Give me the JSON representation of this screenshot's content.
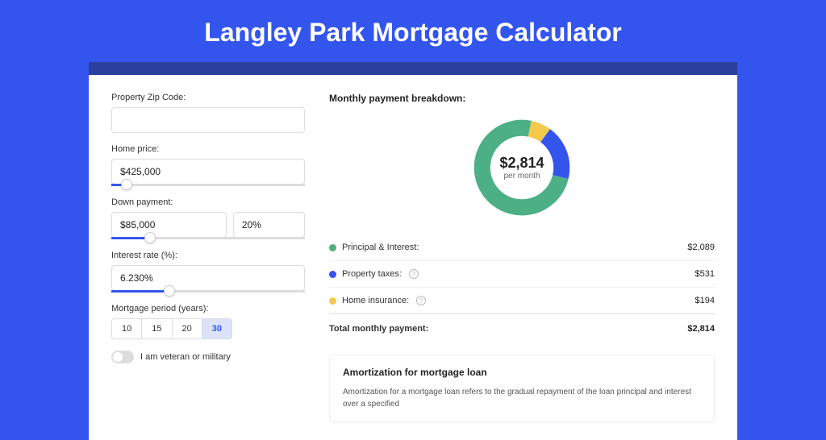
{
  "page": {
    "title": "Langley Park Mortgage Calculator",
    "bg_color": "#3355ee",
    "inner_bg": "#2a3f9e",
    "card_bg": "#ffffff"
  },
  "form": {
    "zip_label": "Property Zip Code:",
    "zip_value": "",
    "home_price_label": "Home price:",
    "home_price_value": "$425,000",
    "home_price_slider_pct": 8,
    "down_payment_label": "Down payment:",
    "down_payment_value": "$85,000",
    "down_payment_pct_value": "20%",
    "down_payment_slider_pct": 20,
    "interest_label": "Interest rate (%):",
    "interest_value": "6.230%",
    "interest_slider_pct": 30,
    "period_label": "Mortgage period (years):",
    "period_options": [
      "10",
      "15",
      "20",
      "30"
    ],
    "period_active_index": 3,
    "veteran_label": "I am veteran or military",
    "veteran_on": false
  },
  "breakdown": {
    "title": "Monthly payment breakdown:",
    "donut": {
      "center_big": "$2,814",
      "center_small": "per month",
      "slices": [
        {
          "label": "Principal & Interest:",
          "value": "$2,089",
          "color": "#4caf86",
          "pct": 74.2
        },
        {
          "label": "Property taxes:",
          "value": "$531",
          "color": "#3355ee",
          "pct": 18.9,
          "info": true
        },
        {
          "label": "Home insurance:",
          "value": "$194",
          "color": "#f2c94c",
          "pct": 6.9,
          "info": true
        }
      ]
    },
    "total_label": "Total monthly payment:",
    "total_value": "$2,814"
  },
  "amortization": {
    "title": "Amortization for mortgage loan",
    "body": "Amortization for a mortgage loan refers to the gradual repayment of the loan principal and interest over a specified"
  }
}
